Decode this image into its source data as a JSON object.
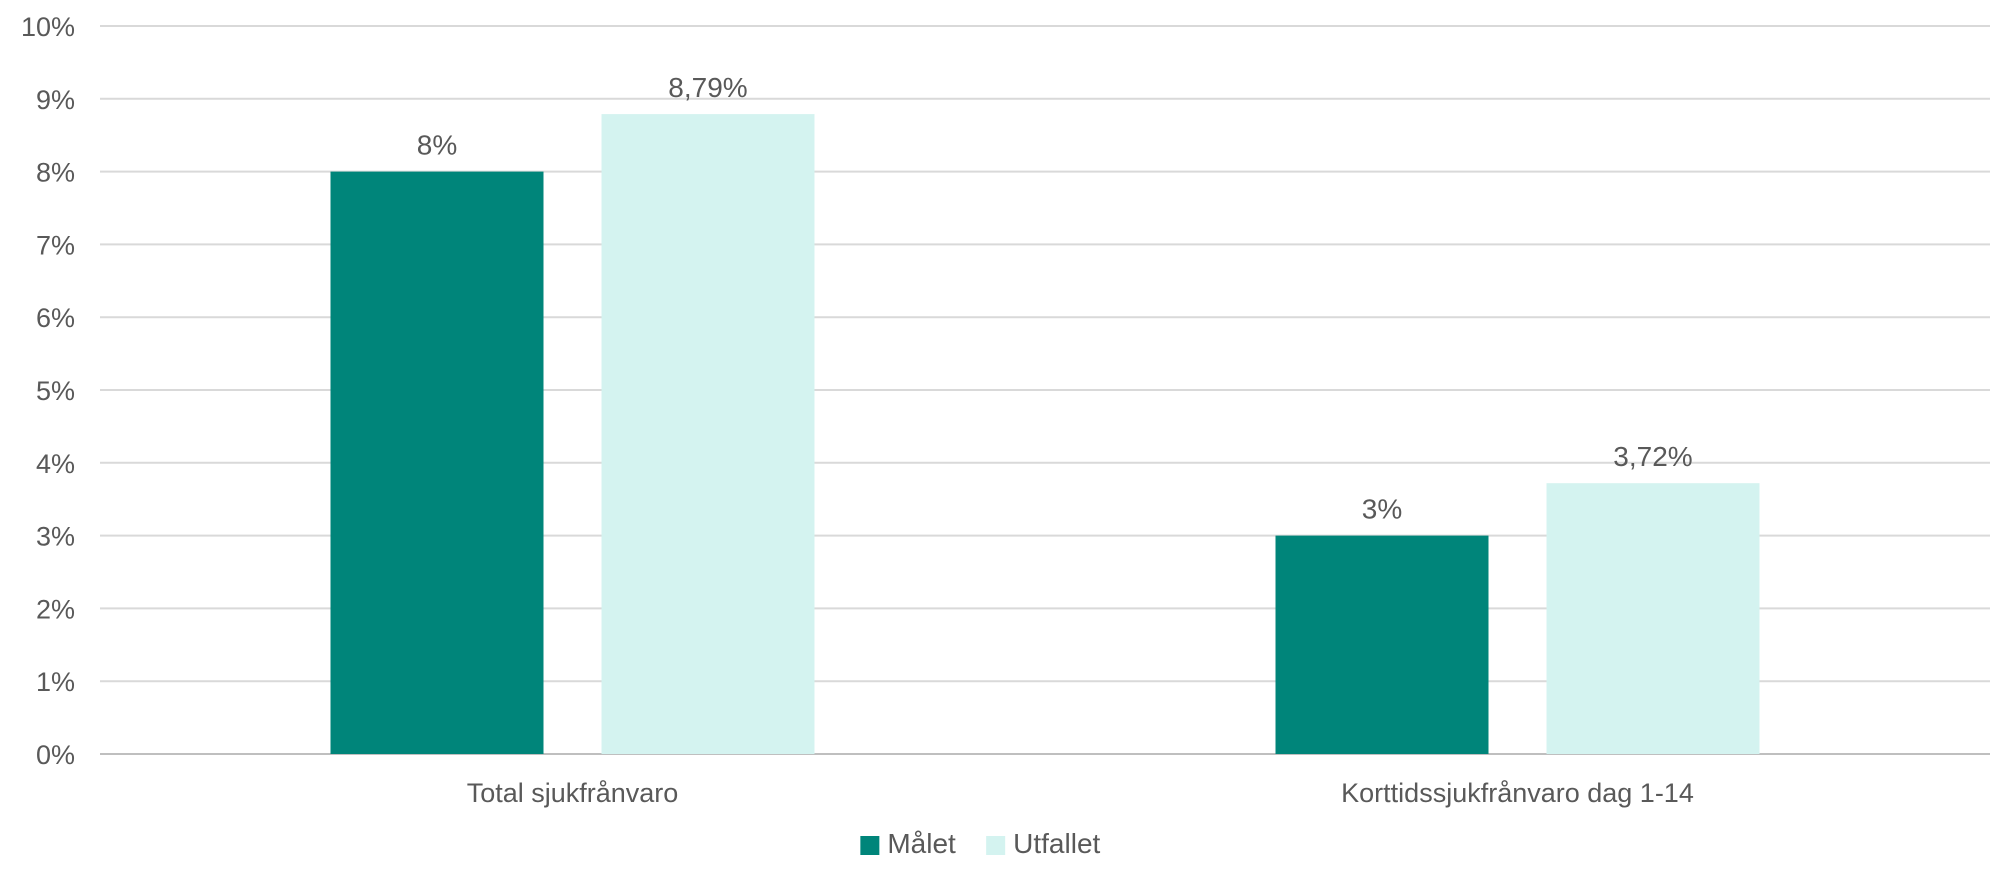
{
  "chart_data": {
    "type": "bar",
    "title": "",
    "xlabel": "",
    "ylabel": "",
    "categories": [
      "Total sjukfrånvaro",
      "Korttidssjukfrånvaro dag 1-14"
    ],
    "series": [
      {
        "name": "Målet",
        "values": [
          8,
          3
        ],
        "labels": [
          "8%",
          "3%"
        ],
        "color": "#00857A"
      },
      {
        "name": "Utfallet",
        "values": [
          8.79,
          3.72
        ],
        "labels": [
          "8,79%",
          "3,72%"
        ],
        "color": "#D4F3F0"
      }
    ],
    "ylim": [
      0,
      10
    ],
    "yticks": [
      0,
      1,
      2,
      3,
      4,
      5,
      6,
      7,
      8,
      9,
      10
    ],
    "ytick_labels": [
      "0%",
      "1%",
      "2%",
      "3%",
      "4%",
      "5%",
      "6%",
      "7%",
      "8%",
      "9%",
      "10%"
    ],
    "grid": true,
    "legend_position": "bottom-center",
    "colors": {
      "grid": "#D9D9D9",
      "axis": "#BFBFBF",
      "text": "#595959"
    }
  }
}
